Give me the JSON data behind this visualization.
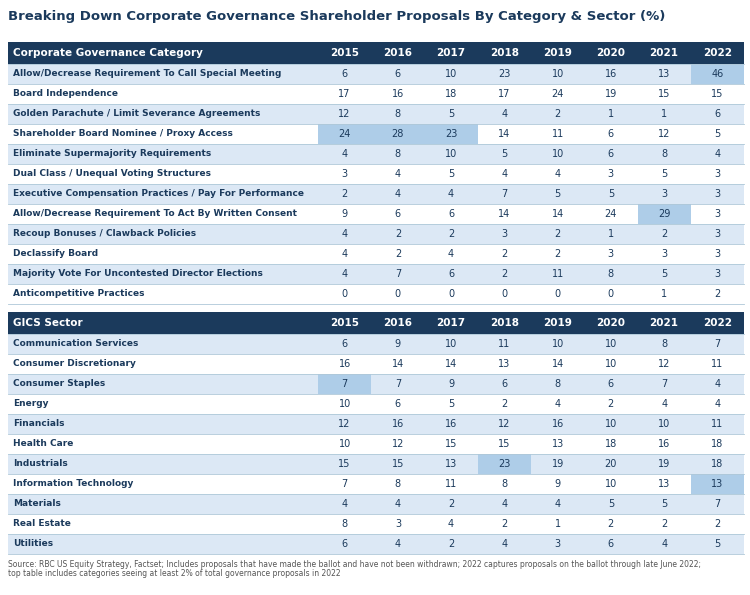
{
  "title": "Breaking Down Corporate Governance Shareholder Proposals By Category & Sector (%)",
  "source_text": "Source: RBC US Equity Strategy, Factset; Includes proposals that have made the ballot and have not been withdrawn; 2022 captures proposals on the ballot through late June 2022; top table includes categories seeing at least 2% of total governance proposals in 2022",
  "years": [
    "2015",
    "2016",
    "2017",
    "2018",
    "2019",
    "2020",
    "2021",
    "2022"
  ],
  "header1_label": "Corporate Governance Category",
  "header2_label": "GICS Sector",
  "gov_categories": [
    "Allow/Decrease Requirement To Call Special Meeting",
    "Board Independence",
    "Golden Parachute / Limit Severance Agreements",
    "Shareholder Board Nominee / Proxy Access",
    "Eliminate Supermajority Requirements",
    "Dual Class / Unequal Voting Structures",
    "Executive Compensation Practices / Pay For Performance",
    "Allow/Decrease Requirement To Act By Written Consent",
    "Recoup Bonuses / Clawback Policies",
    "Declassify Board",
    "Majority Vote For Uncontested Director Elections",
    "Anticompetitive Practices"
  ],
  "gov_data": [
    [
      6,
      6,
      10,
      23,
      10,
      16,
      13,
      46
    ],
    [
      17,
      16,
      18,
      17,
      24,
      19,
      15,
      15
    ],
    [
      12,
      8,
      5,
      4,
      2,
      1,
      1,
      6
    ],
    [
      24,
      28,
      23,
      14,
      11,
      6,
      12,
      5
    ],
    [
      4,
      8,
      10,
      5,
      10,
      6,
      8,
      4
    ],
    [
      3,
      4,
      5,
      4,
      4,
      3,
      5,
      3
    ],
    [
      2,
      4,
      4,
      7,
      5,
      5,
      3,
      3
    ],
    [
      9,
      6,
      6,
      14,
      14,
      24,
      29,
      3
    ],
    [
      4,
      2,
      2,
      3,
      2,
      1,
      2,
      3
    ],
    [
      4,
      2,
      4,
      2,
      2,
      3,
      3,
      3
    ],
    [
      4,
      7,
      6,
      2,
      11,
      8,
      5,
      3
    ],
    [
      0,
      0,
      0,
      0,
      0,
      0,
      1,
      2
    ]
  ],
  "gov_highlights": [
    [
      false,
      false,
      false,
      false,
      false,
      false,
      false,
      true
    ],
    [
      false,
      false,
      false,
      false,
      false,
      false,
      false,
      false
    ],
    [
      false,
      false,
      false,
      false,
      false,
      false,
      false,
      false
    ],
    [
      true,
      true,
      true,
      false,
      false,
      false,
      false,
      false
    ],
    [
      false,
      false,
      false,
      false,
      false,
      false,
      false,
      false
    ],
    [
      false,
      false,
      false,
      false,
      false,
      false,
      false,
      false
    ],
    [
      false,
      false,
      false,
      false,
      false,
      false,
      false,
      false
    ],
    [
      false,
      false,
      false,
      false,
      false,
      false,
      true,
      false
    ],
    [
      false,
      false,
      false,
      false,
      false,
      false,
      false,
      false
    ],
    [
      false,
      false,
      false,
      false,
      false,
      false,
      false,
      false
    ],
    [
      false,
      false,
      false,
      false,
      false,
      false,
      false,
      false
    ],
    [
      false,
      false,
      false,
      false,
      false,
      false,
      false,
      false
    ]
  ],
  "sector_categories": [
    "Communication Services",
    "Consumer Discretionary",
    "Consumer Staples",
    "Energy",
    "Financials",
    "Health Care",
    "Industrials",
    "Information Technology",
    "Materials",
    "Real Estate",
    "Utilities"
  ],
  "sector_data": [
    [
      6,
      9,
      10,
      11,
      10,
      10,
      8,
      7
    ],
    [
      16,
      14,
      14,
      13,
      14,
      10,
      12,
      11
    ],
    [
      7,
      7,
      9,
      6,
      8,
      6,
      7,
      4
    ],
    [
      10,
      6,
      5,
      2,
      4,
      2,
      4,
      4
    ],
    [
      12,
      16,
      16,
      12,
      16,
      10,
      10,
      11
    ],
    [
      10,
      12,
      15,
      15,
      13,
      18,
      16,
      18
    ],
    [
      15,
      15,
      13,
      23,
      19,
      20,
      19,
      18
    ],
    [
      7,
      8,
      11,
      8,
      9,
      10,
      13,
      13
    ],
    [
      4,
      4,
      2,
      4,
      4,
      5,
      5,
      7
    ],
    [
      8,
      3,
      4,
      2,
      1,
      2,
      2,
      2
    ],
    [
      6,
      4,
      2,
      4,
      3,
      6,
      4,
      5
    ]
  ],
  "sector_highlights": [
    [
      false,
      false,
      false,
      false,
      false,
      false,
      false,
      false
    ],
    [
      false,
      false,
      false,
      false,
      false,
      false,
      false,
      false
    ],
    [
      true,
      false,
      false,
      false,
      false,
      false,
      false,
      false
    ],
    [
      false,
      false,
      false,
      false,
      false,
      false,
      false,
      false
    ],
    [
      false,
      false,
      false,
      false,
      false,
      false,
      false,
      false
    ],
    [
      false,
      false,
      false,
      false,
      false,
      false,
      false,
      false
    ],
    [
      false,
      false,
      false,
      true,
      false,
      false,
      false,
      false
    ],
    [
      false,
      false,
      false,
      false,
      false,
      false,
      false,
      true
    ],
    [
      false,
      false,
      false,
      false,
      false,
      false,
      false,
      false
    ],
    [
      false,
      false,
      false,
      false,
      false,
      false,
      false,
      false
    ],
    [
      false,
      false,
      false,
      false,
      false,
      false,
      false,
      false
    ]
  ],
  "header_bg": "#1b3a5c",
  "header_text": "#ffffff",
  "row_bg_even": "#dce8f5",
  "row_bg_odd": "#ffffff",
  "highlight_color": "#aecde8",
  "grid_line_color": "#aec8d8",
  "title_color": "#1b3a5c",
  "body_text_color": "#1b3a5c",
  "source_text_color": "#555555",
  "fig_width": 7.5,
  "fig_height": 5.95,
  "dpi": 100
}
